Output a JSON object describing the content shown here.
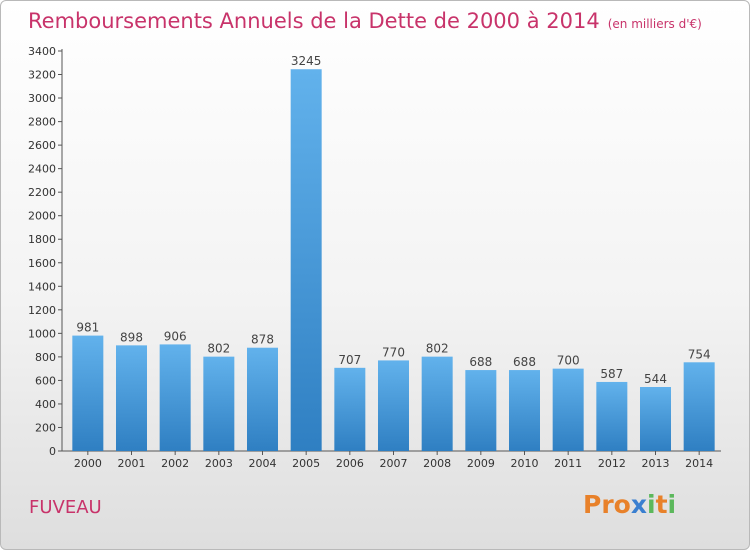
{
  "header": {
    "title": "Remboursements Annuels de la Dette de 2000 à 2014",
    "subtitle": "(en milliers d'€)"
  },
  "footer": {
    "commune": "FUVEAU",
    "logo_text": "Proxiti",
    "logo_colors": [
      "#e8812a",
      "#e8812a",
      "#e8812a",
      "#3a7fd0",
      "#5cb85c",
      "#e8812a",
      "#5cb85c"
    ]
  },
  "chart_data": {
    "type": "bar",
    "title": "Remboursements Annuels de la Dette de 2000 à 2014",
    "subtitle": "(en milliers d'€)",
    "categories": [
      "2000",
      "2001",
      "2002",
      "2003",
      "2004",
      "2005",
      "2006",
      "2007",
      "2008",
      "2009",
      "2010",
      "2011",
      "2012",
      "2013",
      "2014"
    ],
    "values": [
      981,
      898,
      906,
      802,
      878,
      3245,
      707,
      770,
      802,
      688,
      688,
      700,
      587,
      544,
      754
    ],
    "ylim": [
      0,
      3400
    ],
    "yticks": [
      0,
      200,
      400,
      600,
      800,
      1000,
      1200,
      1400,
      1600,
      1800,
      2000,
      2200,
      2400,
      2600,
      2800,
      3000,
      3200,
      3400
    ],
    "grid": false,
    "bar_color": "#4a9ee0",
    "label_color": "#444444",
    "title_color": "#c8336a"
  }
}
